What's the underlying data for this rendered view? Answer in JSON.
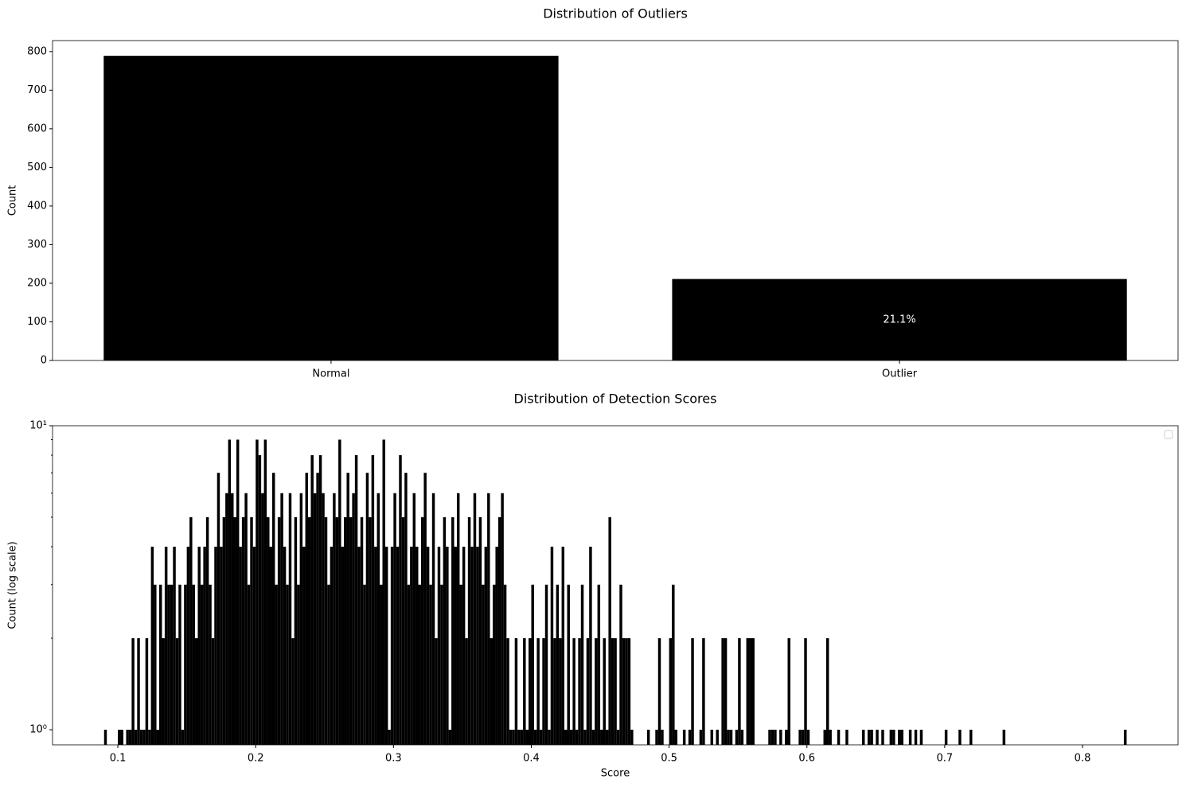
{
  "chart_data": [
    {
      "type": "bar",
      "title": "Distribution of Outliers",
      "ylabel": "Count",
      "categories": [
        "Normal",
        "Outlier"
      ],
      "values": [
        789,
        211
      ],
      "value_labels": [
        null,
        "21.1%"
      ],
      "color": "#000000",
      "label_color": "#ffffff",
      "ylim": [
        0,
        828.45
      ],
      "yticks": [
        0,
        100,
        200,
        300,
        400,
        500,
        600,
        700,
        800
      ]
    },
    {
      "type": "histogram",
      "title": "Distribution of Detection Scores",
      "xlabel": "Score",
      "ylabel": "Count (log scale)",
      "color": "#000000",
      "log_y": true,
      "legend": "upper right",
      "xlim": [
        0.0526,
        0.8693
      ],
      "xticks": [
        0.1,
        0.2,
        0.3,
        0.4,
        0.5,
        0.6,
        0.7,
        0.8
      ],
      "ylim": [
        0.892,
        10
      ],
      "yticks": [
        {
          "value": 1,
          "label": "10⁰"
        },
        {
          "value": 10,
          "label": "10¹"
        }
      ],
      "yminorticks": [
        2,
        3,
        4,
        5,
        6,
        7,
        8,
        9
      ],
      "bins": [
        0.09,
        0.092,
        0.094,
        0.096,
        0.098,
        0.1,
        0.102,
        0.104,
        0.106,
        0.108,
        0.11,
        0.112,
        0.114,
        0.116,
        0.118,
        0.12,
        0.122,
        0.124,
        0.126,
        0.128,
        0.13,
        0.132,
        0.134,
        0.136,
        0.138,
        0.14,
        0.142,
        0.144,
        0.146,
        0.148,
        0.15,
        0.152,
        0.154,
        0.156,
        0.158,
        0.16,
        0.162,
        0.164,
        0.166,
        0.168,
        0.17,
        0.172,
        0.174,
        0.176,
        0.178,
        0.18,
        0.182,
        0.184,
        0.186,
        0.188,
        0.19,
        0.192,
        0.194,
        0.196,
        0.198,
        0.2,
        0.202,
        0.204,
        0.206,
        0.208,
        0.21,
        0.212,
        0.214,
        0.216,
        0.218,
        0.22,
        0.222,
        0.224,
        0.226,
        0.228,
        0.23,
        0.232,
        0.234,
        0.236,
        0.238,
        0.24,
        0.242,
        0.244,
        0.246,
        0.248,
        0.25,
        0.252,
        0.254,
        0.256,
        0.258,
        0.26,
        0.262,
        0.264,
        0.266,
        0.268,
        0.27,
        0.272,
        0.274,
        0.276,
        0.278,
        0.28,
        0.282,
        0.284,
        0.286,
        0.288,
        0.29,
        0.292,
        0.294,
        0.296,
        0.298,
        0.3,
        0.302,
        0.304,
        0.306,
        0.308,
        0.31,
        0.312,
        0.314,
        0.316,
        0.318,
        0.32,
        0.322,
        0.324,
        0.326,
        0.328,
        0.33,
        0.332,
        0.334,
        0.336,
        0.338,
        0.34,
        0.342,
        0.344,
        0.346,
        0.348,
        0.35,
        0.352,
        0.354,
        0.356,
        0.358,
        0.36,
        0.362,
        0.364,
        0.366,
        0.368,
        0.37,
        0.372,
        0.374,
        0.376,
        0.378,
        0.38,
        0.382,
        0.384,
        0.386,
        0.388,
        0.39,
        0.392,
        0.394,
        0.396,
        0.398,
        0.4,
        0.402,
        0.404,
        0.406,
        0.408,
        0.41,
        0.412,
        0.414,
        0.416,
        0.418,
        0.42,
        0.422,
        0.424,
        0.426,
        0.428,
        0.43,
        0.432,
        0.434,
        0.436,
        0.438,
        0.44,
        0.442,
        0.444,
        0.446,
        0.448,
        0.45,
        0.452,
        0.454,
        0.456,
        0.458,
        0.46,
        0.462,
        0.464,
        0.466,
        0.468,
        0.47,
        0.472,
        0.474,
        0.476,
        0.478,
        0.48,
        0.482,
        0.484,
        0.486,
        0.488,
        0.49,
        0.492,
        0.494,
        0.496,
        0.498,
        0.5,
        0.502,
        0.504,
        0.506,
        0.508,
        0.51,
        0.512,
        0.514,
        0.516,
        0.518,
        0.52,
        0.522,
        0.524,
        0.526,
        0.528,
        0.53,
        0.532,
        0.534,
        0.536,
        0.538,
        0.54,
        0.542,
        0.544,
        0.546,
        0.548,
        0.55,
        0.552,
        0.554,
        0.556,
        0.558,
        0.56,
        0.562,
        0.564,
        0.566,
        0.568,
        0.57,
        0.572,
        0.574,
        0.576,
        0.578,
        0.58,
        0.582,
        0.584,
        0.586,
        0.588,
        0.59,
        0.592,
        0.594,
        0.596,
        0.598,
        0.6,
        0.602,
        0.604,
        0.606,
        0.608,
        0.61,
        0.612,
        0.614,
        0.616,
        0.618,
        0.62,
        0.622,
        0.624,
        0.626,
        0.628,
        0.63,
        0.632,
        0.634,
        0.636,
        0.638,
        0.64,
        0.642,
        0.644,
        0.646,
        0.648,
        0.65,
        0.652,
        0.654,
        0.656,
        0.658,
        0.66,
        0.662,
        0.664,
        0.666,
        0.668,
        0.67,
        0.672,
        0.674,
        0.676,
        0.678,
        0.68,
        0.682,
        0.684,
        0.686,
        0.688,
        0.69,
        0.692,
        0.694,
        0.696,
        0.698,
        0.7,
        0.702,
        0.704,
        0.706,
        0.708,
        0.71,
        0.712,
        0.714,
        0.716,
        0.718,
        0.72,
        0.722,
        0.724,
        0.726,
        0.728,
        0.73,
        0.732,
        0.734,
        0.736,
        0.738,
        0.74,
        0.742,
        0.744,
        0.746,
        0.748,
        0.75,
        0.752,
        0.754,
        0.756,
        0.758,
        0.76,
        0.762,
        0.764,
        0.766,
        0.768,
        0.77,
        0.772,
        0.774,
        0.776,
        0.778,
        0.78,
        0.782,
        0.784,
        0.786,
        0.788,
        0.79,
        0.792,
        0.794,
        0.796,
        0.798,
        0.8,
        0.802,
        0.804,
        0.806,
        0.808,
        0.81,
        0.812,
        0.814,
        0.816,
        0.818,
        0.82,
        0.822,
        0.824,
        0.826,
        0.828,
        0.83,
        0.832
      ],
      "values": [
        1,
        0,
        0,
        0,
        0,
        1,
        1,
        0,
        1,
        1,
        2,
        1,
        2,
        1,
        1,
        2,
        1,
        4,
        3,
        1,
        3,
        2,
        4,
        3,
        3,
        4,
        2,
        3,
        1,
        3,
        4,
        5,
        3,
        2,
        4,
        3,
        4,
        5,
        3,
        2,
        4,
        7,
        4,
        5,
        6,
        9,
        6,
        5,
        9,
        4,
        5,
        6,
        3,
        5,
        4,
        9,
        8,
        6,
        9,
        5,
        4,
        7,
        3,
        5,
        6,
        4,
        3,
        6,
        2,
        5,
        3,
        6,
        4,
        7,
        5,
        8,
        6,
        7,
        8,
        6,
        5,
        3,
        4,
        6,
        5,
        9,
        4,
        5,
        7,
        5,
        6,
        8,
        4,
        5,
        3,
        7,
        5,
        8,
        4,
        6,
        3,
        9,
        4,
        1,
        4,
        6,
        4,
        8,
        5,
        7,
        3,
        4,
        6,
        4,
        3,
        5,
        7,
        4,
        3,
        6,
        2,
        4,
        3,
        5,
        4,
        1,
        5,
        4,
        6,
        3,
        4,
        2,
        5,
        4,
        6,
        4,
        5,
        3,
        4,
        6,
        2,
        3,
        4,
        5,
        6,
        3,
        2,
        1,
        1,
        2,
        1,
        1,
        2,
        1,
        2,
        3,
        1,
        2,
        1,
        2,
        3,
        1,
        4,
        2,
        3,
        2,
        4,
        1,
        3,
        1,
        2,
        1,
        2,
        3,
        1,
        2,
        4,
        1,
        2,
        3,
        1,
        2,
        1,
        5,
        2,
        2,
        1,
        3,
        2,
        2,
        2,
        1,
        0,
        0,
        0,
        0,
        0,
        1,
        0,
        0,
        1,
        2,
        1,
        0,
        0,
        2,
        3,
        1,
        0,
        0,
        1,
        0,
        1,
        2,
        0,
        0,
        1,
        2,
        0,
        0,
        1,
        0,
        1,
        0,
        2,
        2,
        1,
        1,
        0,
        1,
        2,
        1,
        0,
        2,
        2,
        2,
        0,
        0,
        0,
        0,
        0,
        1,
        1,
        1,
        0,
        1,
        0,
        1,
        2,
        0,
        0,
        0,
        1,
        1,
        2,
        1,
        0,
        0,
        0,
        0,
        0,
        1,
        2,
        1,
        0,
        0,
        1,
        0,
        0,
        1,
        0,
        0,
        0,
        0,
        0,
        1,
        0,
        1,
        1,
        0,
        1,
        0,
        1,
        0,
        0,
        1,
        1,
        0,
        1,
        1,
        0,
        0,
        1,
        0,
        1,
        0,
        1,
        0,
        0,
        0,
        0,
        0,
        0,
        0,
        0,
        1,
        0,
        0,
        0,
        0,
        1,
        0,
        0,
        0,
        1,
        0,
        0,
        0,
        0,
        0,
        0,
        0,
        0,
        0,
        0,
        0,
        1,
        0,
        0,
        0,
        0,
        0,
        0,
        0,
        0,
        0,
        0,
        0,
        0,
        0,
        0,
        0,
        0,
        0,
        0,
        0,
        0,
        0,
        0,
        0,
        0,
        0,
        0,
        0,
        0,
        0,
        0,
        0,
        0,
        0,
        0,
        0,
        0,
        0,
        0,
        0,
        0,
        0,
        0,
        0,
        1
      ]
    }
  ]
}
